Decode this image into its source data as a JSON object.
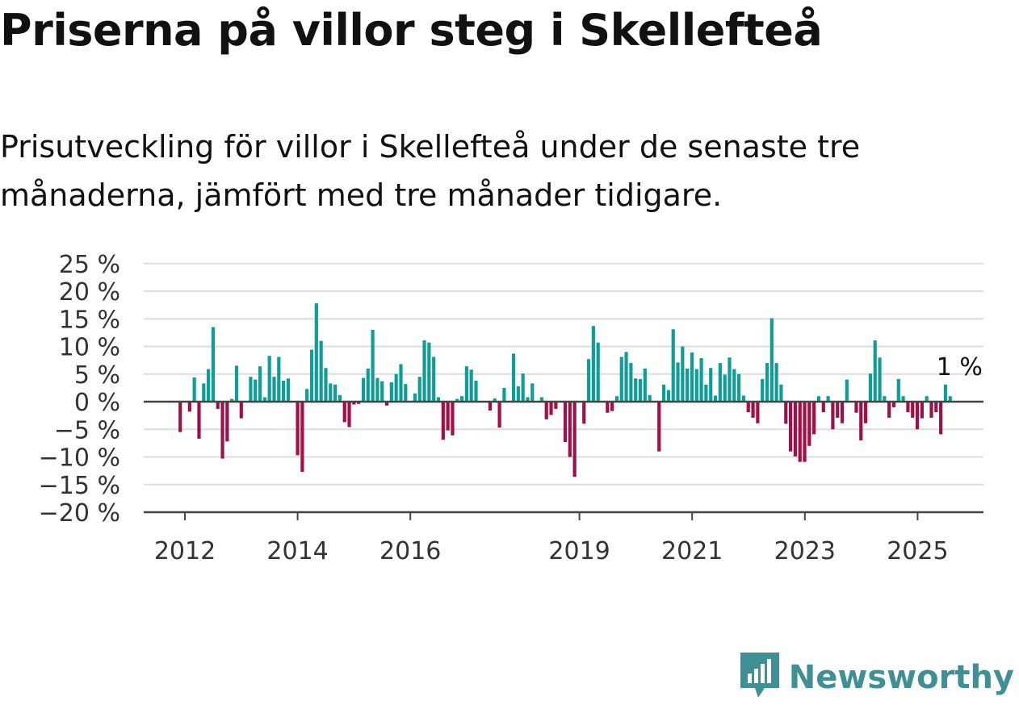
{
  "title": "Priserna på villor steg i Skellefteå",
  "subtitle": "Prisutveckling för villor i Skellefteå under de senaste tre månaderna, jämfört med tre månader tidigare.",
  "brand": {
    "name": "Newsworthy",
    "icon": "newsworthy-logo-icon",
    "color": "#3f8f94"
  },
  "chart_data": {
    "type": "bar",
    "title": "",
    "xlabel": "",
    "ylabel": "",
    "y_ticks": [
      "25 %",
      "20 %",
      "15 %",
      "10 %",
      "5 %",
      "0 %",
      "−5 %",
      "−10 %",
      "−15 %",
      "−20 %"
    ],
    "y_tick_values": [
      25,
      20,
      15,
      10,
      5,
      0,
      -5,
      -10,
      -15,
      -20
    ],
    "ylim": [
      -20,
      25
    ],
    "x_ticks": [
      "2012",
      "2014",
      "2016",
      "2019",
      "2021",
      "2023",
      "2025"
    ],
    "x_tick_values": [
      2012,
      2014,
      2016,
      2019,
      2021,
      2023,
      2025
    ],
    "grid": true,
    "colors": {
      "positive": "#0f9e97",
      "negative": "#a01048",
      "grid": "#dddddd",
      "axis": "#444444"
    },
    "annotation": {
      "text": "1 %",
      "x": 2025.6,
      "y": 1
    },
    "series": [
      {
        "x_start": 2011.917,
        "step_years": 0.0833,
        "values": [
          -5.5,
          0,
          -1.8,
          4.4,
          -6.7,
          3.3,
          5.9,
          13.5,
          -1.3,
          -10.3,
          -7.2,
          0.5,
          6.5,
          -3.0,
          0,
          4.5,
          4.0,
          6.4,
          0.8,
          8.3,
          4.5,
          8.1,
          3.8,
          4.2,
          0,
          -9.7,
          -12.7,
          2.3,
          9.4,
          17.8,
          11.0,
          6.1,
          3.3,
          3.1,
          1.2,
          -3.7,
          -4.6,
          -0.5,
          -0.4,
          4.3,
          6.0,
          13.0,
          4.3,
          3.7,
          -0.7,
          3.5,
          5.0,
          6.8,
          3.2,
          0,
          1.5,
          4.5,
          11.1,
          10.7,
          8.1,
          0.8,
          -6.9,
          -5.2,
          -6.1,
          0.5,
          1.0,
          6.4,
          5.8,
          3.8,
          0,
          0,
          -1.6,
          0.6,
          -4.7,
          2.5,
          0,
          8.7,
          2.8,
          5.1,
          0.8,
          3.3,
          0,
          0.8,
          -3.2,
          -2.4,
          -1.3,
          0,
          -7.3,
          -10.0,
          -13.6,
          0,
          -4.0,
          7.7,
          13.7,
          10.7,
          0,
          -2.0,
          -1.7,
          1.0,
          8.1,
          9.0,
          7.0,
          4.2,
          4.1,
          6.0,
          1.2,
          0,
          -9.0,
          3.1,
          2.1,
          13.1,
          7.1,
          10.0,
          6.0,
          8.9,
          5.9,
          7.9,
          3.1,
          6.1,
          1.1,
          7.0,
          4.9,
          8.0,
          5.9,
          5.0,
          1.1,
          -1.9,
          -2.9,
          -3.9,
          4.1,
          7.0,
          15.1,
          7.0,
          3.1,
          -4.0,
          -9.0,
          -9.9,
          -10.9,
          -10.9,
          -8.0,
          -5.9,
          1.0,
          -1.9,
          1.0,
          -5.0,
          -2.9,
          -3.9,
          4.0,
          0,
          -2.0,
          -7.0,
          -3.9,
          5.1,
          11.1,
          8.0,
          1.0,
          -2.9,
          -1.0,
          4.1,
          1.0,
          -1.9,
          -2.9,
          -5.0,
          -3.0,
          1.0,
          -2.9,
          -1.9,
          -5.9,
          3.1,
          1.0
        ]
      }
    ]
  }
}
